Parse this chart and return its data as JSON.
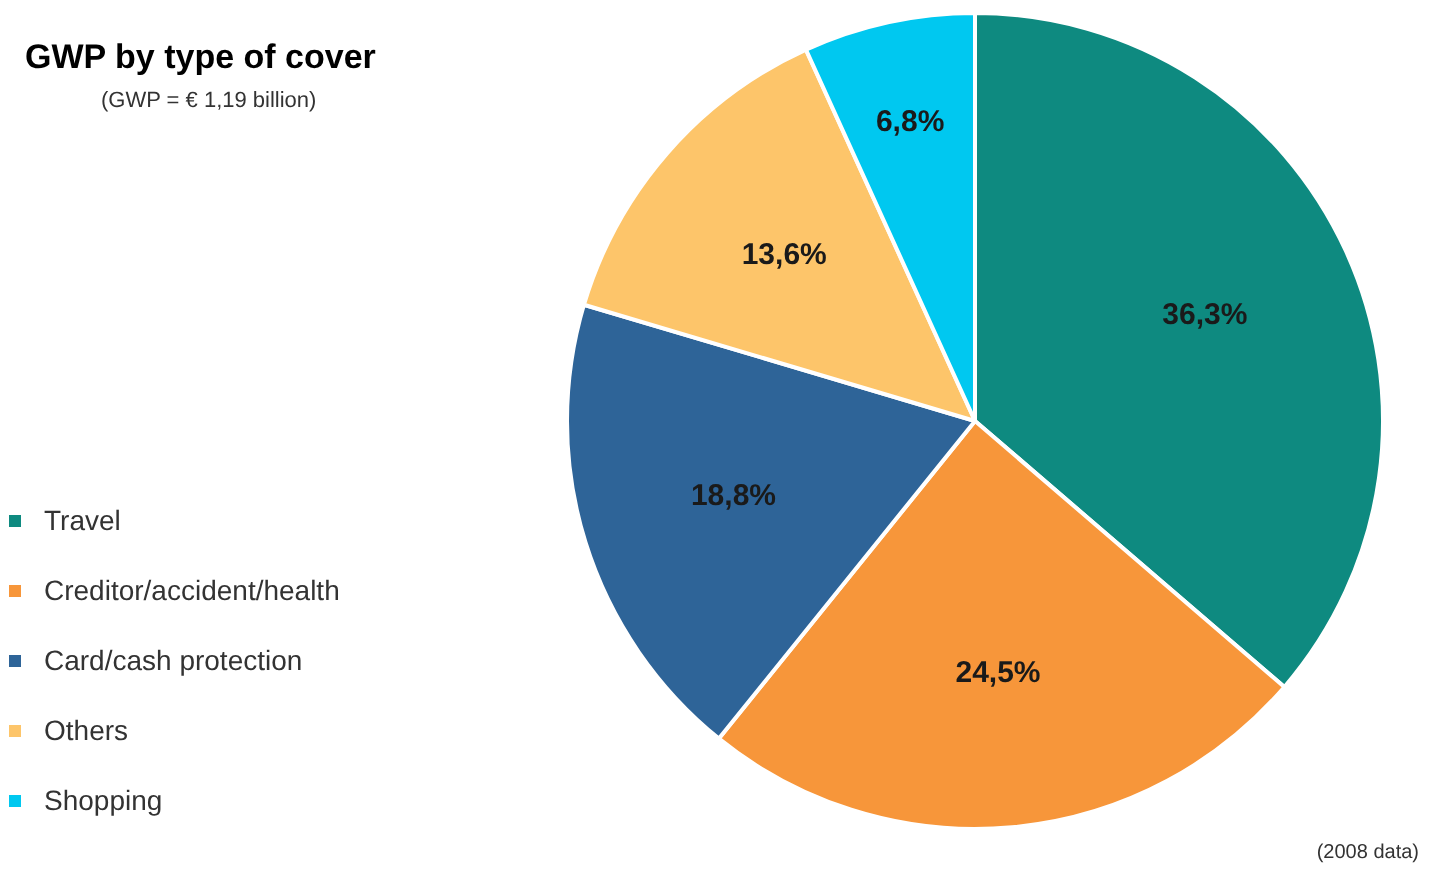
{
  "chart_data": {
    "type": "pie",
    "title": "GWP by type of cover",
    "subtitle": "(GWP = € 1,19 billion)",
    "categories": [
      "Travel",
      "Creditor/accident/health",
      "Card/cash protection",
      "Others",
      "Shopping"
    ],
    "values": [
      36.3,
      24.5,
      18.8,
      13.6,
      6.8
    ],
    "colors": [
      "#0e8a80",
      "#f7963a",
      "#2e6498",
      "#fdc56a",
      "#00c8f0"
    ],
    "value_labels": [
      "36,3%",
      "24,5%",
      "18,8%",
      "13,6%",
      "6,8%"
    ],
    "legend": "left",
    "annotations": [
      "(2008 data)"
    ]
  }
}
